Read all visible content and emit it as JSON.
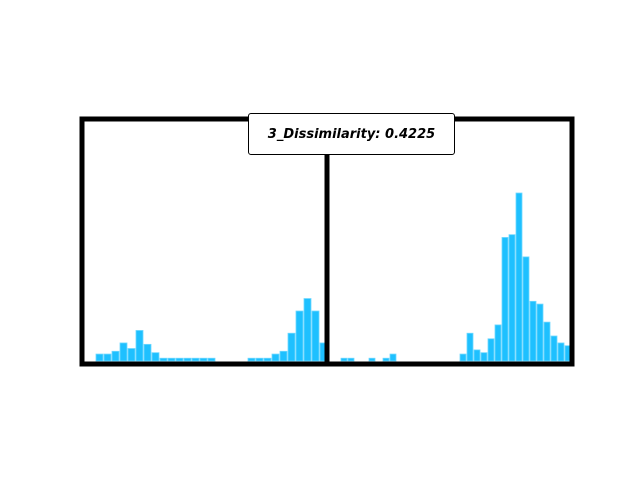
{
  "chart_data": {
    "type": "bar",
    "title": "3_Dissimilarity: 0.4225",
    "grid": false,
    "legend": "none",
    "bar_color": "#1ec0ff",
    "bar_edge_color": "#6fd8ff",
    "frame_color": "#000000",
    "panels": [
      {
        "name": "left",
        "xlim": [
          0,
          29
        ],
        "ylim": [
          0,
          17
        ],
        "values": [
          0.5,
          0.5,
          0.7,
          1.3,
          0.9,
          2.2,
          1.2,
          0.6,
          0.2,
          0.2,
          0.2,
          0.2,
          0.2,
          0.2,
          0.2,
          0,
          0,
          0,
          0,
          0.2,
          0.2,
          0.2,
          0.5,
          0.7,
          2.0,
          3.6,
          4.5,
          3.6,
          1.3
        ]
      },
      {
        "name": "right",
        "xlim": [
          0,
          29
        ],
        "ylim": [
          0,
          17
        ],
        "values": [
          0.2,
          0.2,
          0,
          0,
          0.2,
          0,
          0.2,
          0.5,
          0,
          0,
          0,
          0,
          0,
          0,
          0,
          0,
          0,
          0.5,
          2.0,
          0.8,
          0.6,
          1.6,
          2.6,
          8.9,
          9.1,
          12.1,
          7.5,
          4.3,
          4.1,
          2.8,
          1.8,
          1.3,
          1.1
        ]
      }
    ]
  }
}
